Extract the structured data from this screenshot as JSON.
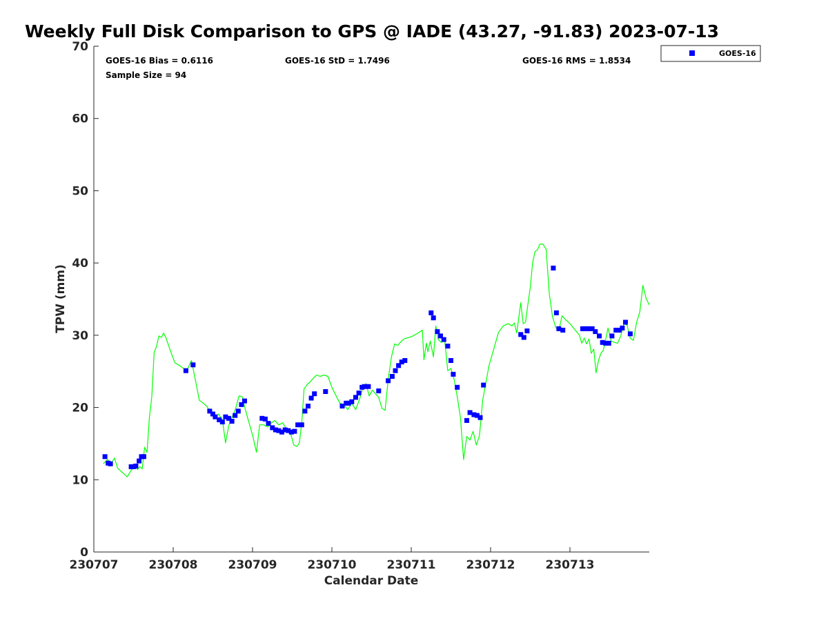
{
  "chart_data": {
    "type": "scatter",
    "title": "Weekly Full Disk Comparison to GPS @ IADE (43.27, -91.83) 2023-07-13",
    "xlabel": "Calendar Date",
    "ylabel": "TPW (mm)",
    "xlim": [
      230707,
      230714
    ],
    "ylim": [
      0,
      70
    ],
    "x_ticks": [
      230707,
      230708,
      230709,
      230710,
      230711,
      230712,
      230713
    ],
    "x_tick_labels": [
      "230707",
      "230708",
      "230709",
      "230710",
      "230711",
      "230712",
      "230713"
    ],
    "y_ticks": [
      0,
      10,
      20,
      30,
      40,
      50,
      60,
      70
    ],
    "y_tick_labels": [
      "0",
      "10",
      "20",
      "30",
      "40",
      "50",
      "60",
      "70"
    ],
    "grid": false,
    "legend_position": "outside top-right",
    "stats": {
      "bias": "GOES-16 Bias = 0.6116",
      "std": "GOES-16 StD = 1.7496",
      "rms": "GOES-16 RMS = 1.8534",
      "sample": "Sample Size = 94"
    },
    "series": [
      {
        "name": "GOES-16",
        "kind": "scatter",
        "color": "#0000ff",
        "marker": "square",
        "x": [
          230707.14,
          230707.18,
          230707.21,
          230707.47,
          230707.5,
          230707.53,
          230707.57,
          230707.6,
          230707.63,
          230708.16,
          230708.25,
          230708.46,
          230708.5,
          230708.53,
          230708.58,
          230708.62,
          230708.66,
          230708.7,
          230708.74,
          230708.78,
          230708.82,
          230708.86,
          230708.9,
          230709.12,
          230709.16,
          230709.2,
          230709.25,
          230709.29,
          230709.33,
          230709.37,
          230709.41,
          230709.45,
          230709.49,
          230709.53,
          230709.57,
          230709.62,
          230709.66,
          230709.7,
          230709.74,
          230709.78,
          230709.92,
          230710.13,
          230710.18,
          230710.21,
          230710.25,
          230710.3,
          230710.34,
          230710.38,
          230710.41,
          230710.46,
          230710.59,
          230710.71,
          230710.76,
          230710.8,
          230710.84,
          230710.88,
          230710.92,
          230711.25,
          230711.28,
          230711.33,
          230711.37,
          230711.41,
          230711.46,
          230711.5,
          230711.53,
          230711.58,
          230711.7,
          230711.74,
          230711.79,
          230711.83,
          230711.87,
          230711.91,
          230712.38,
          230712.42,
          230712.46,
          230712.79,
          230712.83,
          230712.86,
          230712.91,
          230713.16,
          230713.2,
          230713.24,
          230713.28,
          230713.32,
          230713.37,
          230713.41,
          230713.45,
          230713.49,
          230713.53,
          230713.58,
          230713.62,
          230713.66,
          230713.7,
          230713.76
        ],
        "y": [
          13.2,
          12.3,
          12.2,
          11.8,
          11.8,
          11.9,
          12.6,
          13.2,
          13.2,
          25.1,
          25.9,
          19.5,
          19.1,
          18.7,
          18.3,
          18.0,
          18.7,
          18.5,
          18.1,
          18.9,
          19.5,
          20.4,
          20.9,
          18.5,
          18.4,
          17.8,
          17.2,
          16.9,
          16.8,
          16.6,
          16.9,
          16.8,
          16.6,
          16.7,
          17.6,
          17.6,
          19.5,
          20.2,
          21.3,
          21.9,
          22.2,
          20.2,
          20.6,
          20.6,
          20.8,
          21.4,
          22.0,
          22.8,
          22.9,
          22.9,
          22.3,
          23.7,
          24.3,
          25.1,
          25.8,
          26.3,
          26.5,
          33.1,
          32.4,
          30.5,
          29.9,
          29.4,
          28.5,
          26.5,
          24.6,
          22.8,
          18.2,
          19.3,
          19.0,
          18.9,
          18.6,
          23.1,
          30.1,
          29.7,
          30.6,
          39.3,
          33.1,
          30.9,
          30.7,
          30.9,
          30.9,
          30.9,
          30.9,
          30.5,
          29.9,
          29.0,
          28.9,
          28.9,
          29.9,
          30.7,
          30.7,
          31.0,
          31.8,
          30.2
        ]
      },
      {
        "name": "",
        "kind": "line",
        "color": "#00ff00",
        "x": [
          230707.12,
          230707.17,
          230707.22,
          230707.26,
          230707.3,
          230707.36,
          230707.42,
          230707.47,
          230707.52,
          230707.55,
          230707.58,
          230707.61,
          230707.64,
          230707.67,
          230707.7,
          230707.73,
          230707.76,
          230707.79,
          230707.82,
          230707.85,
          230707.88,
          230707.91,
          230707.96,
          230708.02,
          230708.08,
          230708.13,
          230708.18,
          230708.23,
          230708.28,
          230708.33,
          230708.38,
          230708.43,
          230708.47,
          230708.52,
          230708.57,
          230708.62,
          230708.66,
          230708.7,
          230708.74,
          230708.78,
          230708.83,
          230708.87,
          230708.9,
          230708.94,
          230709.0,
          230709.05,
          230709.09,
          230709.14,
          230709.19,
          230709.23,
          230709.28,
          230709.33,
          230709.38,
          230709.43,
          230709.48,
          230709.52,
          230709.56,
          230709.59,
          230709.62,
          230709.65,
          230709.69,
          230709.73,
          230709.77,
          230709.81,
          230709.85,
          230709.9,
          230709.95,
          230710.0,
          230710.05,
          230710.1,
          230710.15,
          230710.2,
          230710.25,
          230710.3,
          230710.35,
          230710.39,
          230710.43,
          230710.47,
          230710.51,
          230710.55,
          230710.59,
          230710.63,
          230710.67,
          230710.71,
          230710.75,
          230710.79,
          230710.83,
          230710.87,
          230710.91,
          230711.0,
          230711.07,
          230711.14,
          230711.16,
          230711.19,
          230711.21,
          230711.24,
          230711.28,
          230711.31,
          230711.34,
          230711.38,
          230711.42,
          230711.46,
          230711.5,
          230711.54,
          230711.58,
          230711.62,
          230711.66,
          230711.7,
          230711.74,
          230711.78,
          230711.82,
          230711.86,
          230711.9,
          230711.94,
          230711.98,
          230712.04,
          230712.1,
          230712.16,
          230712.22,
          230712.27,
          230712.3,
          230712.33,
          230712.38,
          230712.41,
          230712.44,
          230712.47,
          230712.5,
          230712.53,
          230712.56,
          230712.59,
          230712.62,
          230712.66,
          230712.7,
          230712.74,
          230712.78,
          230712.82,
          230712.86,
          230712.9,
          230712.94,
          230713.0,
          230713.06,
          230713.12,
          230713.15,
          230713.18,
          230713.21,
          230713.24,
          230713.27,
          230713.3,
          230713.33,
          230713.36,
          230713.39,
          230713.42,
          230713.45,
          230713.48,
          230713.52,
          230713.56,
          230713.6,
          230713.64,
          230713.68,
          230713.72,
          230713.76,
          230713.8,
          230713.84,
          230713.88,
          230713.92,
          230713.96,
          230714.0
        ],
        "y": [
          12.2,
          12.8,
          12.3,
          13.0,
          11.6,
          11.0,
          10.4,
          11.3,
          12.0,
          11.4,
          11.8,
          11.5,
          14.5,
          13.8,
          18.6,
          21.5,
          27.6,
          28.5,
          29.9,
          29.7,
          30.3,
          29.6,
          28.0,
          26.2,
          25.8,
          25.4,
          25.3,
          26.5,
          23.8,
          21.0,
          20.6,
          20.1,
          19.2,
          18.6,
          19.1,
          18.3,
          15.1,
          17.5,
          18.6,
          19.6,
          21.6,
          21.5,
          20.1,
          18.5,
          16.2,
          13.8,
          17.6,
          17.6,
          17.3,
          17.8,
          18.2,
          17.6,
          17.9,
          17.0,
          16.4,
          14.8,
          14.6,
          15.1,
          17.8,
          22.6,
          23.2,
          23.6,
          24.1,
          24.5,
          24.3,
          24.5,
          24.3,
          22.8,
          21.7,
          20.6,
          20.4,
          19.7,
          20.6,
          19.7,
          21.2,
          22.8,
          23.3,
          21.6,
          22.4,
          21.9,
          21.4,
          19.9,
          19.6,
          23.9,
          27.0,
          28.8,
          28.6,
          29.1,
          29.5,
          29.8,
          30.2,
          30.7,
          26.6,
          28.9,
          27.7,
          29.2,
          27.0,
          31.3,
          29.4,
          29.0,
          29.5,
          25.1,
          25.4,
          23.9,
          21.5,
          18.6,
          12.8,
          16.0,
          15.5,
          16.7,
          14.8,
          16.1,
          21.0,
          23.4,
          25.8,
          28.1,
          30.4,
          31.3,
          31.6,
          31.3,
          31.7,
          30.3,
          34.5,
          31.6,
          31.8,
          34.3,
          36.6,
          40.0,
          41.6,
          41.8,
          42.6,
          42.6,
          41.9,
          35.7,
          32.6,
          31.1,
          30.6,
          32.7,
          32.2,
          31.6,
          30.8,
          30.0,
          28.9,
          29.6,
          28.8,
          29.5,
          27.5,
          28.1,
          24.8,
          26.5,
          27.5,
          27.9,
          29.4,
          31.0,
          29.2,
          29.0,
          28.9,
          29.9,
          31.6,
          31.4,
          29.6,
          29.3,
          31.8,
          33.2,
          36.9,
          35.1,
          34.2
        ]
      }
    ]
  }
}
